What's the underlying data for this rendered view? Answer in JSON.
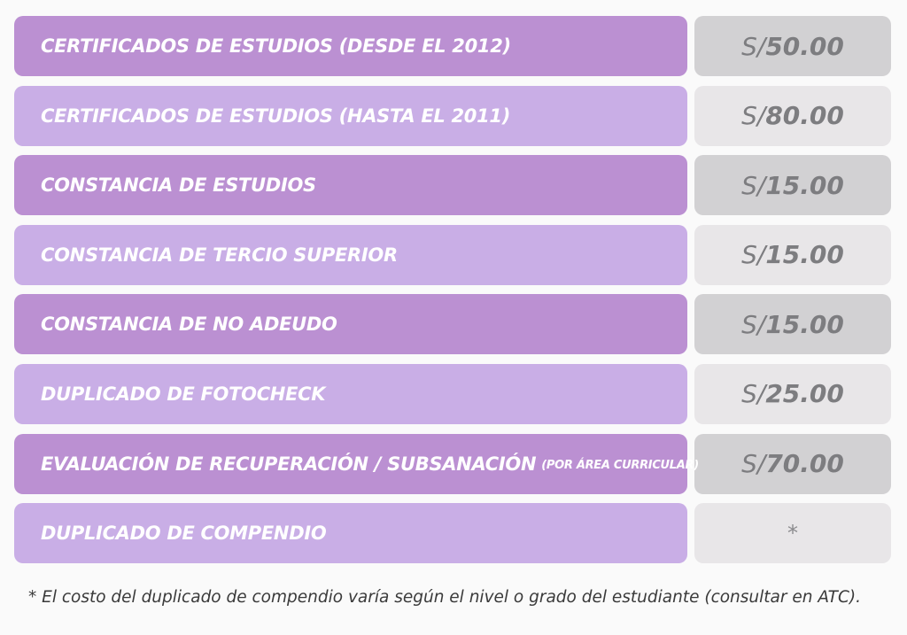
{
  "rows": [
    {
      "label": "CERTIFICADOS DE ESTUDIOS (DESDE EL 2012)",
      "note": "",
      "currency": "S/",
      "amount": "50.00",
      "shade": "dark"
    },
    {
      "label": "CERTIFICADOS DE ESTUDIOS (HASTA EL 2011)",
      "note": "",
      "currency": "S/",
      "amount": "80.00",
      "shade": "light"
    },
    {
      "label": "CONSTANCIA DE ESTUDIOS",
      "note": "",
      "currency": "S/",
      "amount": "15.00",
      "shade": "dark"
    },
    {
      "label": "CONSTANCIA DE TERCIO SUPERIOR",
      "note": "",
      "currency": "S/",
      "amount": "15.00",
      "shade": "light"
    },
    {
      "label": "CONSTANCIA DE NO ADEUDO",
      "note": "",
      "currency": "S/",
      "amount": "15.00",
      "shade": "dark"
    },
    {
      "label": "DUPLICADO DE FOTOCHECK",
      "note": "",
      "currency": "S/",
      "amount": "25.00",
      "shade": "light"
    },
    {
      "label": "EVALUACIÓN DE RECUPERACIÓN / SUBSANACIÓN",
      "note": "(POR ÁREA CURRICULAR)",
      "currency": "S/",
      "amount": "70.00",
      "shade": "dark"
    },
    {
      "label": "DUPLICADO DE COMPENDIO",
      "note": "",
      "currency": "",
      "amount": "*",
      "shade": "light"
    }
  ],
  "footnote": "* El costo del duplicado de compendio varía según el nivel o grado del estudiante (consultar en ATC).",
  "colors": {
    "label_dark": "#bb90d2",
    "label_light": "#c9aee6",
    "price_dark": "#d2d1d3",
    "price_light": "#e8e6e8",
    "price_text": "#7d7d80"
  }
}
